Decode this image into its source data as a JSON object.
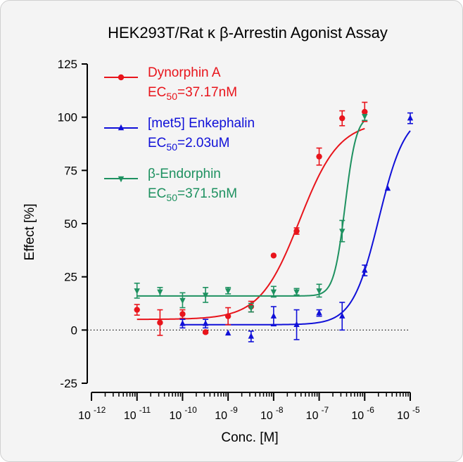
{
  "chart_data": {
    "type": "scatter",
    "title": "HEK293T/Rat κ β-Arrestin Agonist Assay",
    "xlabel": "Conc. [M]",
    "ylabel": "Effect  [%]",
    "x_scale": "log",
    "xlim": [
      1e-12,
      1e-05
    ],
    "ylim": [
      -25,
      125
    ],
    "y_ticks": [
      -25,
      0,
      25,
      50,
      75,
      100,
      125
    ],
    "x_ticks": [
      {
        "value": 1e-12,
        "base": "10",
        "exp": "-12"
      },
      {
        "value": 1e-11,
        "base": "10",
        "exp": "-11"
      },
      {
        "value": 1e-10,
        "base": "10",
        "exp": "-10"
      },
      {
        "value": 1e-09,
        "base": "10",
        "exp": "-9"
      },
      {
        "value": 1e-08,
        "base": "10",
        "exp": "-8"
      },
      {
        "value": 1e-07,
        "base": "10",
        "exp": "-7"
      },
      {
        "value": 1e-06,
        "base": "10",
        "exp": "-6"
      },
      {
        "value": 1e-05,
        "base": "10",
        "exp": "-5"
      }
    ],
    "baseline": {
      "y": 0,
      "style": "dotted"
    },
    "legend_position": "top-left",
    "series": [
      {
        "name": "Dynorphin A",
        "ec50_prefix": "EC",
        "ec50_sub": "50",
        "ec50_value": "=37.17nM",
        "color": "#e8141b",
        "marker": "circle",
        "x": [
          1e-11,
          3.2e-11,
          1e-10,
          3.2e-10,
          1e-09,
          3.2e-09,
          1e-08,
          3.2e-08,
          1e-07,
          3.2e-07,
          1e-06
        ],
        "y": [
          9.5,
          3.5,
          7.5,
          -1,
          6.5,
          11,
          35,
          46.5,
          81.5,
          99.5,
          102.5
        ],
        "err": [
          2.5,
          6,
          2,
          0.5,
          4,
          2.5,
          0,
          1.5,
          4,
          3.5,
          4.5
        ],
        "curve": {
          "bottom": 5,
          "top": 98,
          "logec50": -7.43,
          "hill": 1.0
        }
      },
      {
        "name": "[met5] Enkephalin",
        "ec50_prefix": "EC",
        "ec50_sub": "50",
        "ec50_value": "=2.03uM",
        "color": "#1010d8",
        "marker": "triangle-up",
        "x": [
          1e-10,
          3.2e-10,
          1e-09,
          3.2e-09,
          1e-08,
          3.2e-08,
          1e-07,
          3.2e-07,
          1e-06,
          3.2e-06,
          1e-05
        ],
        "y": [
          3,
          3,
          -1.5,
          -3,
          6.5,
          2.5,
          8,
          6.5,
          28,
          66.5,
          99.5
        ],
        "err": [
          2,
          2,
          0,
          2.5,
          4.5,
          7,
          1.5,
          6.5,
          2.5,
          0,
          2.5
        ],
        "curve": {
          "bottom": 2.5,
          "top": 102,
          "logec50": -5.69,
          "hill": 1.5
        }
      },
      {
        "name": "β-Endorphin",
        "ec50_prefix": "EC",
        "ec50_sub": "50",
        "ec50_value": "=371.5nM",
        "color": "#1e9160",
        "marker": "triangle-down",
        "x": [
          1e-11,
          3.2e-11,
          1e-10,
          3.2e-10,
          1e-09,
          3.2e-09,
          1e-08,
          3.2e-08,
          1e-07,
          3.2e-07,
          1e-06
        ],
        "y": [
          18.5,
          18,
          14,
          16.5,
          18.5,
          10.5,
          18,
          18,
          18.5,
          46.5,
          100.5
        ],
        "err": [
          3.5,
          2,
          3.5,
          3.5,
          1.5,
          2,
          2.5,
          1.5,
          3,
          5,
          2
        ],
        "curve": {
          "bottom": 16,
          "top": 101,
          "logec50": -6.43,
          "hill": 3.5
        }
      }
    ]
  }
}
